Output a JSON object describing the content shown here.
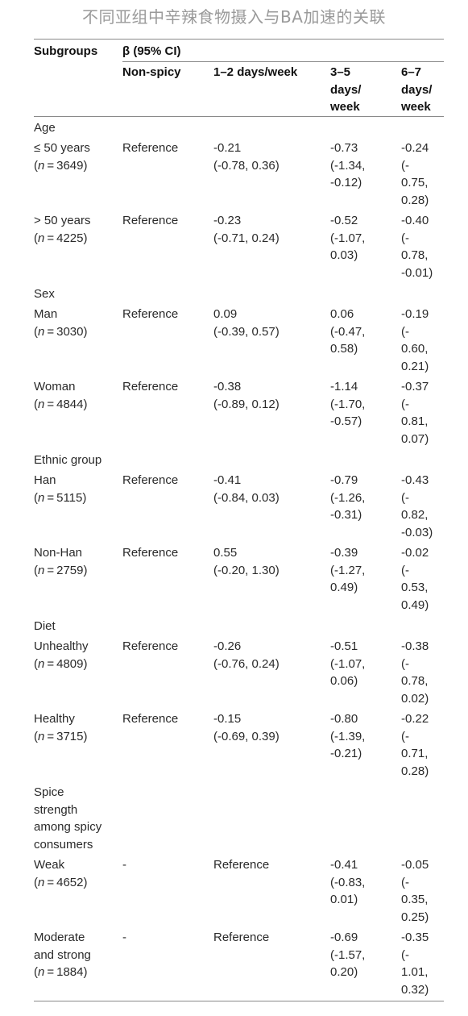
{
  "title": "不同亚组中辛辣食物摄入与BA加速的关联",
  "header": {
    "col1": "Subgroups",
    "beta": "β (95% CI)",
    "col2": "Non-spicy",
    "col3": "1–2 days/week",
    "col4": "3–5\ndays/\nweek",
    "col5": "6–7\ndays/\nweek"
  },
  "sections": [
    {
      "title": "Age",
      "rows": [
        {
          "name": "≤ 50 years",
          "n": "3649",
          "c2": "Reference",
          "c3": "-0.21\n(-0.78, 0.36)",
          "c4": "-0.73\n(-1.34,\n-0.12)",
          "c5": "-0.24\n(-\n0.75,\n0.28)"
        },
        {
          "name": "> 50 years",
          "n": "4225",
          "c2": "Reference",
          "c3": "-0.23\n(-0.71, 0.24)",
          "c4": "-0.52\n(-1.07,\n0.03)",
          "c5": "-0.40\n(-\n0.78,\n-0.01)"
        }
      ]
    },
    {
      "title": "Sex",
      "rows": [
        {
          "name": "Man",
          "n": "3030",
          "c2": "Reference",
          "c3": "0.09\n(-0.39, 0.57)",
          "c4": "0.06\n(-0.47,\n0.58)",
          "c5": "-0.19\n(-\n0.60,\n0.21)"
        },
        {
          "name": "Woman",
          "n": "4844",
          "c2": "Reference",
          "c3": "-0.38\n(-0.89, 0.12)",
          "c4": "-1.14\n(-1.70,\n-0.57)",
          "c5": "-0.37\n(-\n0.81,\n0.07)"
        }
      ]
    },
    {
      "title": "Ethnic group",
      "rows": [
        {
          "name": "Han",
          "n": "5115",
          "c2": "Reference",
          "c3": "-0.41\n(-0.84, 0.03)",
          "c4": "-0.79\n(-1.26,\n-0.31)",
          "c5": "-0.43\n(-\n0.82,\n-0.03)"
        },
        {
          "name": "Non-Han",
          "n": "2759",
          "c2": "Reference",
          "c3": "0.55\n(-0.20, 1.30)",
          "c4": "-0.39\n(-1.27,\n0.49)",
          "c5": "-0.02\n(-\n0.53,\n0.49)"
        }
      ]
    },
    {
      "title": "Diet",
      "rows": [
        {
          "name": "Unhealthy",
          "n": "4809",
          "c2": "Reference",
          "c3": "-0.26\n(-0.76, 0.24)",
          "c4": "-0.51\n(-1.07,\n0.06)",
          "c5": "-0.38\n(-\n0.78,\n0.02)"
        },
        {
          "name": "Healthy",
          "n": "3715",
          "c2": "Reference",
          "c3": "-0.15\n(-0.69, 0.39)",
          "c4": "-0.80\n(-1.39,\n-0.21)",
          "c5": "-0.22\n(-\n0.71,\n0.28)"
        }
      ]
    },
    {
      "title": "Spice\nstrength\namong spicy\nconsumers",
      "rows": [
        {
          "name": "Weak",
          "n": "4652",
          "c2": "-",
          "c3": "Reference",
          "c4": "-0.41\n(-0.83,\n0.01)",
          "c5": "-0.05\n(-\n0.35,\n0.25)"
        },
        {
          "name": "Moderate\nand strong",
          "n": "1884",
          "c2": "-",
          "c3": "Reference",
          "c4": "-0.69\n(-1.57,\n0.20)",
          "c5": "-0.35\n(-\n1.01,\n0.32)"
        }
      ]
    }
  ]
}
